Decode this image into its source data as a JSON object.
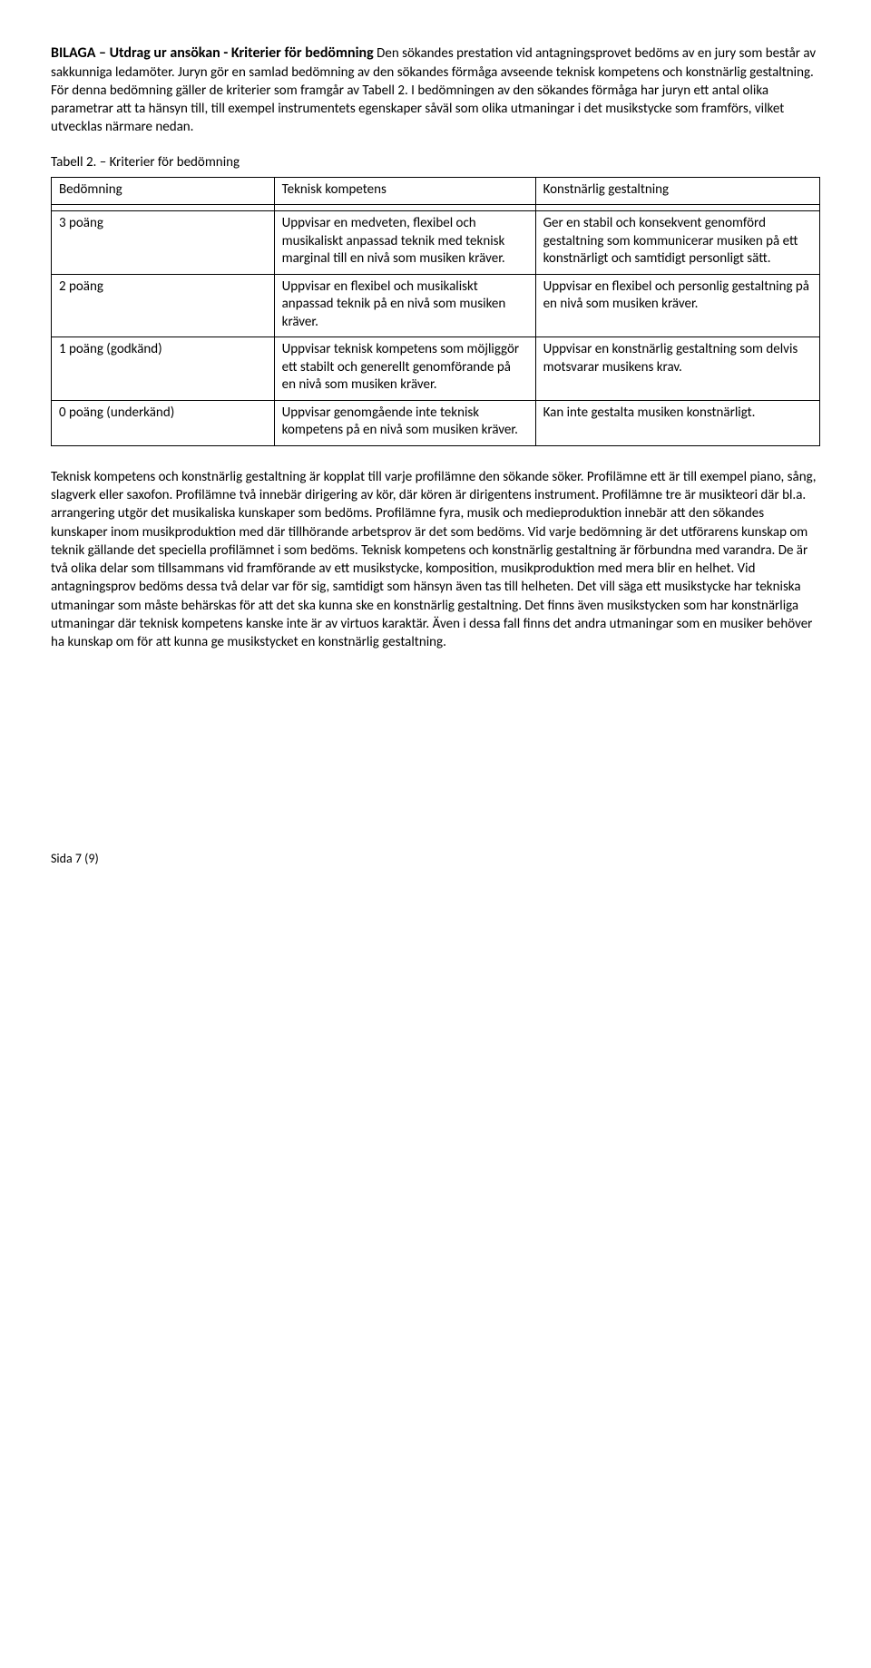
{
  "heading": "BILAGA – Utdrag ur ansökan - Kriterier för bedömning",
  "intro": "Den sökandes prestation vid antagningsprovet bedöms av en jury som består av sakkunniga ledamöter. Juryn gör en samlad bedömning av den sökandes förmåga avseende teknisk kompetens och konstnärlig gestaltning. För denna bedömning gäller de kriterier som framgår av Tabell 2. I bedömningen av den sökandes förmåga har juryn ett antal olika parametrar att ta hänsyn till, till exempel instrumentets egenskaper såväl som olika utmaningar i det musikstycke som framförs, vilket utvecklas närmare nedan.",
  "caption": "Tabell 2. – Kriterier för bedömning",
  "table": {
    "header": {
      "c0": "Bedömning",
      "c1": "Teknisk kompetens",
      "c2": "Konstnärlig gestaltning"
    },
    "rows": [
      {
        "c0": "3 poäng",
        "c1": "Uppvisar en medveten, flexibel och musikaliskt anpassad teknik med teknisk marginal till en nivå som musiken kräver.",
        "c2": "Ger en stabil och konsekvent genomförd gestaltning som kommunicerar musiken på ett konstnärligt och samtidigt personligt sätt."
      },
      {
        "c0": "2 poäng",
        "c1": "Uppvisar en flexibel och musikaliskt anpassad teknik på en nivå som musiken kräver.",
        "c2": "Uppvisar en flexibel och personlig gestaltning på en nivå som musiken kräver."
      },
      {
        "c0": "1 poäng (godkänd)",
        "c1": "Uppvisar teknisk kompetens som möjliggör ett stabilt och generellt genomförande på en nivå som musiken kräver.",
        "c2": "Uppvisar en konstnärlig gestaltning som delvis motsvarar musikens krav."
      },
      {
        "c0": "0 poäng (underkänd)",
        "c1": "Uppvisar genomgående inte teknisk kompetens på en nivå som musiken kräver.",
        "c2": "Kan inte gestalta musiken konstnärligt."
      }
    ]
  },
  "body": "Teknisk kompetens och konstnärlig gestaltning är kopplat till varje profilämne den sökande söker. Profilämne ett är till exempel piano, sång, slagverk eller saxofon. Profilämne två innebär dirigering av kör, där kören är dirigentens instrument. Profilämne tre är musikteori där bl.a. arrangering utgör det musikaliska kunskaper som bedöms. Profilämne fyra, musik och medieproduktion innebär att den sökandes kunskaper inom musikproduktion med där tillhörande arbetsprov är det som bedöms. Vid varje bedömning är det utförarens kunskap om teknik gällande det speciella profilämnet i som bedöms. Teknisk kompetens och konstnärlig gestaltning är förbundna med varandra. De är två olika delar som tillsammans vid framförande av ett musikstycke, komposition, musikproduktion med mera blir en helhet. Vid antagningsprov bedöms dessa två delar var för sig, samtidigt som hänsyn även tas till helheten. Det vill säga ett musikstycke har tekniska utmaningar som måste behärskas för att det ska kunna ske en konstnärlig gestaltning. Det finns även musikstycken som har konstnärliga utmaningar där teknisk kompetens kanske inte är av virtuos karaktär. Även i dessa fall finns det andra utmaningar som en musiker behöver ha kunskap om för att kunna ge musikstycket en konstnärlig gestaltning.",
  "footer": "Sida 7 (9)"
}
